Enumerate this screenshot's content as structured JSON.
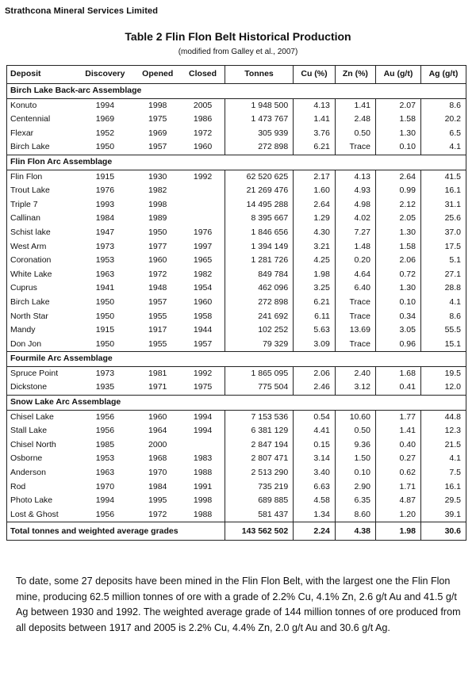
{
  "header": {
    "company": "Strathcona Mineral Services Limited",
    "table_title": "Table  2  Flin Flon Belt Historical Production",
    "table_subtitle": "(modified from Galley et al., 2007)"
  },
  "table": {
    "columns": [
      "Deposit",
      "Discovery",
      "Opened",
      "Closed",
      "Tonnes",
      "Cu (%)",
      "Zn (%)",
      "Au (g/t)",
      "Ag (g/t)"
    ],
    "groups": [
      {
        "name": "Birch Lake Back-arc Assemblage",
        "rows": [
          [
            "Konuto",
            "1994",
            "1998",
            "2005",
            "1 948 500",
            "4.13",
            "1.41",
            "2.07",
            "8.6"
          ],
          [
            "Centennial",
            "1969",
            "1975",
            "1986",
            "1 473 767",
            "1.41",
            "2.48",
            "1.58",
            "20.2"
          ],
          [
            "Flexar",
            "1952",
            "1969",
            "1972",
            "305 939",
            "3.76",
            "0.50",
            "1.30",
            "6.5"
          ],
          [
            "Birch Lake",
            "1950",
            "1957",
            "1960",
            "272 898",
            "6.21",
            "Trace",
            "0.10",
            "4.1"
          ]
        ]
      },
      {
        "name": "Flin Flon Arc Assemblage",
        "rows": [
          [
            "Flin Flon",
            "1915",
            "1930",
            "1992",
            "62 520 625",
            "2.17",
            "4.13",
            "2.64",
            "41.5"
          ],
          [
            "Trout Lake",
            "1976",
            "1982",
            "",
            "21 269 476",
            "1.60",
            "4.93",
            "0.99",
            "16.1"
          ],
          [
            "Triple 7",
            "1993",
            "1998",
            "",
            "14 495 288",
            "2.64",
            "4.98",
            "2.12",
            "31.1"
          ],
          [
            "Callinan",
            "1984",
            "1989",
            "",
            "8 395 667",
            "1.29",
            "4.02",
            "2.05",
            "25.6"
          ],
          [
            "Schist lake",
            "1947",
            "1950",
            "1976",
            "1 846 656",
            "4.30",
            "7.27",
            "1.30",
            "37.0"
          ],
          [
            "West Arm",
            "1973",
            "1977",
            "1997",
            "1 394 149",
            "3.21",
            "1.48",
            "1.58",
            "17.5"
          ],
          [
            "Coronation",
            "1953",
            "1960",
            "1965",
            "1 281 726",
            "4.25",
            "0.20",
            "2.06",
            "5.1"
          ],
          [
            "White Lake",
            "1963",
            "1972",
            "1982",
            "849 784",
            "1.98",
            "4.64",
            "0.72",
            "27.1"
          ],
          [
            "Cuprus",
            "1941",
            "1948",
            "1954",
            "462 096",
            "3.25",
            "6.40",
            "1.30",
            "28.8"
          ],
          [
            "Birch Lake",
            "1950",
            "1957",
            "1960",
            "272 898",
            "6.21",
            "Trace",
            "0.10",
            "4.1"
          ],
          [
            "North Star",
            "1950",
            "1955",
            "1958",
            "241 692",
            "6.11",
            "Trace",
            "0.34",
            "8.6"
          ],
          [
            "Mandy",
            "1915",
            "1917",
            "1944",
            "102 252",
            "5.63",
            "13.69",
            "3.05",
            "55.5"
          ],
          [
            "Don Jon",
            "1950",
            "1955",
            "1957",
            "79 329",
            "3.09",
            "Trace",
            "0.96",
            "15.1"
          ]
        ]
      },
      {
        "name": "Fourmile Arc Assemblage",
        "rows": [
          [
            "Spruce Point",
            "1973",
            "1981",
            "1992",
            "1 865 095",
            "2.06",
            "2.40",
            "1.68",
            "19.5"
          ],
          [
            "Dickstone",
            "1935",
            "1971",
            "1975",
            "775 504",
            "2.46",
            "3.12",
            "0.41",
            "12.0"
          ]
        ]
      },
      {
        "name": "Snow Lake Arc Assemblage",
        "rows": [
          [
            "Chisel Lake",
            "1956",
            "1960",
            "1994",
            "7 153 536",
            "0.54",
            "10.60",
            "1.77",
            "44.8"
          ],
          [
            "Stall Lake",
            "1956",
            "1964",
            "1994",
            "6 381 129",
            "4.41",
            "0.50",
            "1.41",
            "12.3"
          ],
          [
            "Chisel North",
            "1985",
            "2000",
            "",
            "2 847 194",
            "0.15",
            "9.36",
            "0.40",
            "21.5"
          ],
          [
            "Osborne",
            "1953",
            "1968",
            "1983",
            "2 807 471",
            "3.14",
            "1.50",
            "0.27",
            "4.1"
          ],
          [
            "Anderson",
            "1963",
            "1970",
            "1988",
            "2 513 290",
            "3.40",
            "0.10",
            "0.62",
            "7.5"
          ],
          [
            "Rod",
            "1970",
            "1984",
            "1991",
            "735 219",
            "6.63",
            "2.90",
            "1.71",
            "16.1"
          ],
          [
            "Photo Lake",
            "1994",
            "1995",
            "1998",
            "689 885",
            "4.58",
            "6.35",
            "4.87",
            "29.5"
          ],
          [
            "Lost & Ghost",
            "1956",
            "1972",
            "1988",
            "581 437",
            "1.34",
            "8.60",
            "1.20",
            "39.1"
          ]
        ]
      }
    ],
    "total": {
      "label": "Total tonnes and weighted average grades",
      "tonnes": "143 562 502",
      "cu": "2.24",
      "zn": "4.38",
      "au": "1.98",
      "ag": "30.6"
    }
  },
  "paragraph": "To date, some 27 deposits have been mined in the Flin Flon Belt, with the largest one the Flin Flon mine, producing 62.5 million tonnes of ore with a grade of 2.2% Cu, 4.1% Zn, 2.6 g/t Au and 41.5 g/t Ag between 1930 and 1992.  The weighted average grade of 144 million tonnes of ore produced from all deposits between 1917 and 2005 is 2.2% Cu, 4.4% Zn, 2.0 g/t Au and 30.6 g/t Ag."
}
